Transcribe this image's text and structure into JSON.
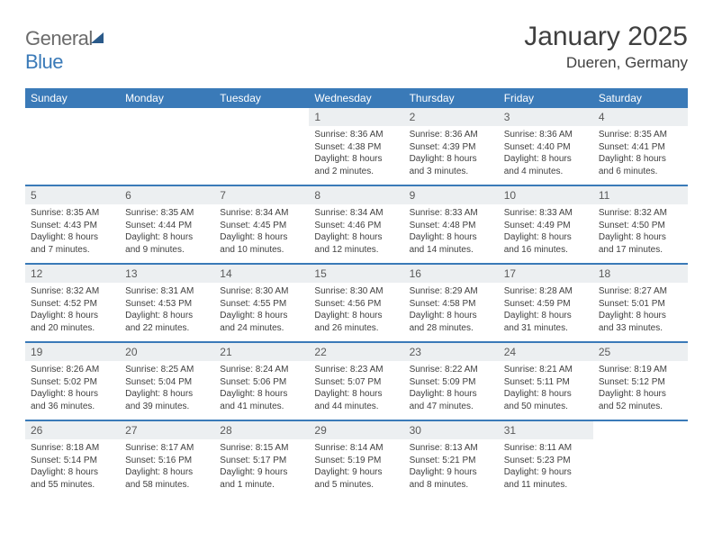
{
  "brand": {
    "part1": "General",
    "part2": "Blue"
  },
  "title": "January 2025",
  "location": "Dueren, Germany",
  "colors": {
    "accent": "#3a7ab8",
    "daynum_bg": "#eceff1",
    "text": "#404040"
  },
  "day_labels": [
    "Sunday",
    "Monday",
    "Tuesday",
    "Wednesday",
    "Thursday",
    "Friday",
    "Saturday"
  ],
  "weeks": [
    [
      null,
      null,
      null,
      {
        "n": "1",
        "sr": "Sunrise: 8:36 AM",
        "ss": "Sunset: 4:38 PM",
        "d1": "Daylight: 8 hours",
        "d2": "and 2 minutes."
      },
      {
        "n": "2",
        "sr": "Sunrise: 8:36 AM",
        "ss": "Sunset: 4:39 PM",
        "d1": "Daylight: 8 hours",
        "d2": "and 3 minutes."
      },
      {
        "n": "3",
        "sr": "Sunrise: 8:36 AM",
        "ss": "Sunset: 4:40 PM",
        "d1": "Daylight: 8 hours",
        "d2": "and 4 minutes."
      },
      {
        "n": "4",
        "sr": "Sunrise: 8:35 AM",
        "ss": "Sunset: 4:41 PM",
        "d1": "Daylight: 8 hours",
        "d2": "and 6 minutes."
      }
    ],
    [
      {
        "n": "5",
        "sr": "Sunrise: 8:35 AM",
        "ss": "Sunset: 4:43 PM",
        "d1": "Daylight: 8 hours",
        "d2": "and 7 minutes."
      },
      {
        "n": "6",
        "sr": "Sunrise: 8:35 AM",
        "ss": "Sunset: 4:44 PM",
        "d1": "Daylight: 8 hours",
        "d2": "and 9 minutes."
      },
      {
        "n": "7",
        "sr": "Sunrise: 8:34 AM",
        "ss": "Sunset: 4:45 PM",
        "d1": "Daylight: 8 hours",
        "d2": "and 10 minutes."
      },
      {
        "n": "8",
        "sr": "Sunrise: 8:34 AM",
        "ss": "Sunset: 4:46 PM",
        "d1": "Daylight: 8 hours",
        "d2": "and 12 minutes."
      },
      {
        "n": "9",
        "sr": "Sunrise: 8:33 AM",
        "ss": "Sunset: 4:48 PM",
        "d1": "Daylight: 8 hours",
        "d2": "and 14 minutes."
      },
      {
        "n": "10",
        "sr": "Sunrise: 8:33 AM",
        "ss": "Sunset: 4:49 PM",
        "d1": "Daylight: 8 hours",
        "d2": "and 16 minutes."
      },
      {
        "n": "11",
        "sr": "Sunrise: 8:32 AM",
        "ss": "Sunset: 4:50 PM",
        "d1": "Daylight: 8 hours",
        "d2": "and 17 minutes."
      }
    ],
    [
      {
        "n": "12",
        "sr": "Sunrise: 8:32 AM",
        "ss": "Sunset: 4:52 PM",
        "d1": "Daylight: 8 hours",
        "d2": "and 20 minutes."
      },
      {
        "n": "13",
        "sr": "Sunrise: 8:31 AM",
        "ss": "Sunset: 4:53 PM",
        "d1": "Daylight: 8 hours",
        "d2": "and 22 minutes."
      },
      {
        "n": "14",
        "sr": "Sunrise: 8:30 AM",
        "ss": "Sunset: 4:55 PM",
        "d1": "Daylight: 8 hours",
        "d2": "and 24 minutes."
      },
      {
        "n": "15",
        "sr": "Sunrise: 8:30 AM",
        "ss": "Sunset: 4:56 PM",
        "d1": "Daylight: 8 hours",
        "d2": "and 26 minutes."
      },
      {
        "n": "16",
        "sr": "Sunrise: 8:29 AM",
        "ss": "Sunset: 4:58 PM",
        "d1": "Daylight: 8 hours",
        "d2": "and 28 minutes."
      },
      {
        "n": "17",
        "sr": "Sunrise: 8:28 AM",
        "ss": "Sunset: 4:59 PM",
        "d1": "Daylight: 8 hours",
        "d2": "and 31 minutes."
      },
      {
        "n": "18",
        "sr": "Sunrise: 8:27 AM",
        "ss": "Sunset: 5:01 PM",
        "d1": "Daylight: 8 hours",
        "d2": "and 33 minutes."
      }
    ],
    [
      {
        "n": "19",
        "sr": "Sunrise: 8:26 AM",
        "ss": "Sunset: 5:02 PM",
        "d1": "Daylight: 8 hours",
        "d2": "and 36 minutes."
      },
      {
        "n": "20",
        "sr": "Sunrise: 8:25 AM",
        "ss": "Sunset: 5:04 PM",
        "d1": "Daylight: 8 hours",
        "d2": "and 39 minutes."
      },
      {
        "n": "21",
        "sr": "Sunrise: 8:24 AM",
        "ss": "Sunset: 5:06 PM",
        "d1": "Daylight: 8 hours",
        "d2": "and 41 minutes."
      },
      {
        "n": "22",
        "sr": "Sunrise: 8:23 AM",
        "ss": "Sunset: 5:07 PM",
        "d1": "Daylight: 8 hours",
        "d2": "and 44 minutes."
      },
      {
        "n": "23",
        "sr": "Sunrise: 8:22 AM",
        "ss": "Sunset: 5:09 PM",
        "d1": "Daylight: 8 hours",
        "d2": "and 47 minutes."
      },
      {
        "n": "24",
        "sr": "Sunrise: 8:21 AM",
        "ss": "Sunset: 5:11 PM",
        "d1": "Daylight: 8 hours",
        "d2": "and 50 minutes."
      },
      {
        "n": "25",
        "sr": "Sunrise: 8:19 AM",
        "ss": "Sunset: 5:12 PM",
        "d1": "Daylight: 8 hours",
        "d2": "and 52 minutes."
      }
    ],
    [
      {
        "n": "26",
        "sr": "Sunrise: 8:18 AM",
        "ss": "Sunset: 5:14 PM",
        "d1": "Daylight: 8 hours",
        "d2": "and 55 minutes."
      },
      {
        "n": "27",
        "sr": "Sunrise: 8:17 AM",
        "ss": "Sunset: 5:16 PM",
        "d1": "Daylight: 8 hours",
        "d2": "and 58 minutes."
      },
      {
        "n": "28",
        "sr": "Sunrise: 8:15 AM",
        "ss": "Sunset: 5:17 PM",
        "d1": "Daylight: 9 hours",
        "d2": "and 1 minute."
      },
      {
        "n": "29",
        "sr": "Sunrise: 8:14 AM",
        "ss": "Sunset: 5:19 PM",
        "d1": "Daylight: 9 hours",
        "d2": "and 5 minutes."
      },
      {
        "n": "30",
        "sr": "Sunrise: 8:13 AM",
        "ss": "Sunset: 5:21 PM",
        "d1": "Daylight: 9 hours",
        "d2": "and 8 minutes."
      },
      {
        "n": "31",
        "sr": "Sunrise: 8:11 AM",
        "ss": "Sunset: 5:23 PM",
        "d1": "Daylight: 9 hours",
        "d2": "and 11 minutes."
      },
      null
    ]
  ]
}
